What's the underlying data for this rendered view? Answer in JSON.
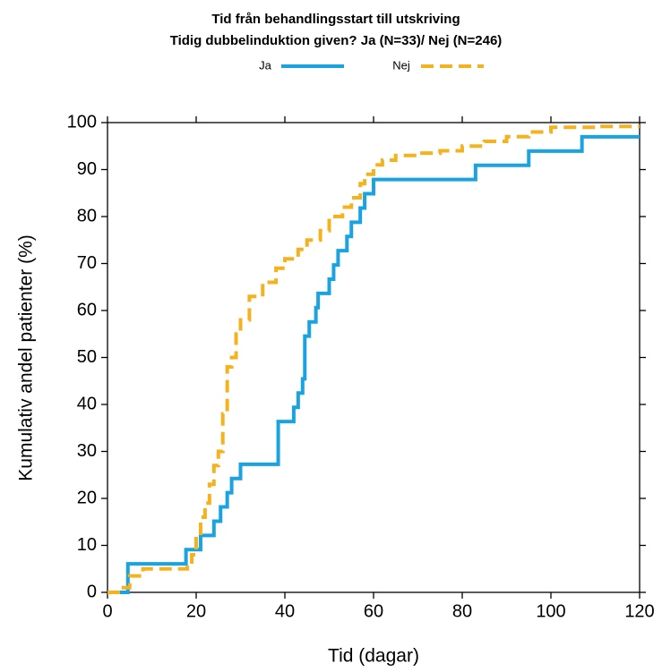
{
  "chart_data": {
    "type": "step",
    "title": "Tid från behandlingsstart till utskriving",
    "subtitle": "Tidig dubbelinduktion given? Ja  (N=33)/ Nej (N=246)",
    "x_label": "Tid (dagar)",
    "y_label": "Kumulativ andel patienter (%)",
    "xlim": [
      0,
      120
    ],
    "ylim": [
      0,
      100
    ],
    "xticks": [
      0,
      20,
      40,
      60,
      80,
      100,
      120
    ],
    "yticks": [
      0,
      10,
      20,
      30,
      40,
      50,
      60,
      70,
      80,
      90,
      100
    ],
    "series": [
      {
        "name": "Ja",
        "color": "#1aa3e0",
        "dash": false,
        "x": [
          0,
          4.6,
          17.7,
          21,
          24,
          25.5,
          27,
          28,
          30,
          38.5,
          42,
          43,
          44,
          44.5,
          45.5,
          47,
          47.5,
          50,
          51,
          52,
          54,
          55,
          57,
          58,
          60,
          83,
          95,
          107,
          120
        ],
        "values": [
          0,
          6.06,
          9.09,
          12.12,
          15.15,
          18.18,
          21.21,
          24.24,
          27.27,
          36.36,
          39.39,
          42.42,
          45.45,
          54.55,
          57.58,
          60.61,
          63.64,
          66.67,
          69.7,
          72.73,
          75.76,
          78.79,
          81.82,
          84.85,
          87.88,
          90.91,
          93.94,
          96.97,
          96.97
        ]
      },
      {
        "name": "Nej",
        "color": "#f5b21f",
        "dash": true,
        "x": [
          0,
          3,
          5,
          8,
          15,
          18,
          19,
          20,
          21,
          22,
          23,
          24,
          25,
          26,
          27,
          28,
          29,
          30,
          32,
          35,
          38,
          40,
          43,
          45,
          48,
          50,
          53,
          55,
          57,
          58,
          60,
          62,
          65,
          70,
          75,
          80,
          85,
          90,
          95,
          100,
          105,
          110,
          120
        ],
        "values": [
          0,
          1,
          3.5,
          5,
          5,
          6,
          8,
          12,
          16,
          19,
          23,
          27,
          30,
          38,
          48,
          50,
          55,
          58,
          63,
          66,
          69,
          71,
          73,
          75,
          77,
          80,
          82,
          84,
          87,
          89,
          91,
          92,
          93,
          93.5,
          94,
          95,
          96,
          97,
          98,
          99,
          99,
          99.2,
          99.2
        ]
      }
    ]
  }
}
